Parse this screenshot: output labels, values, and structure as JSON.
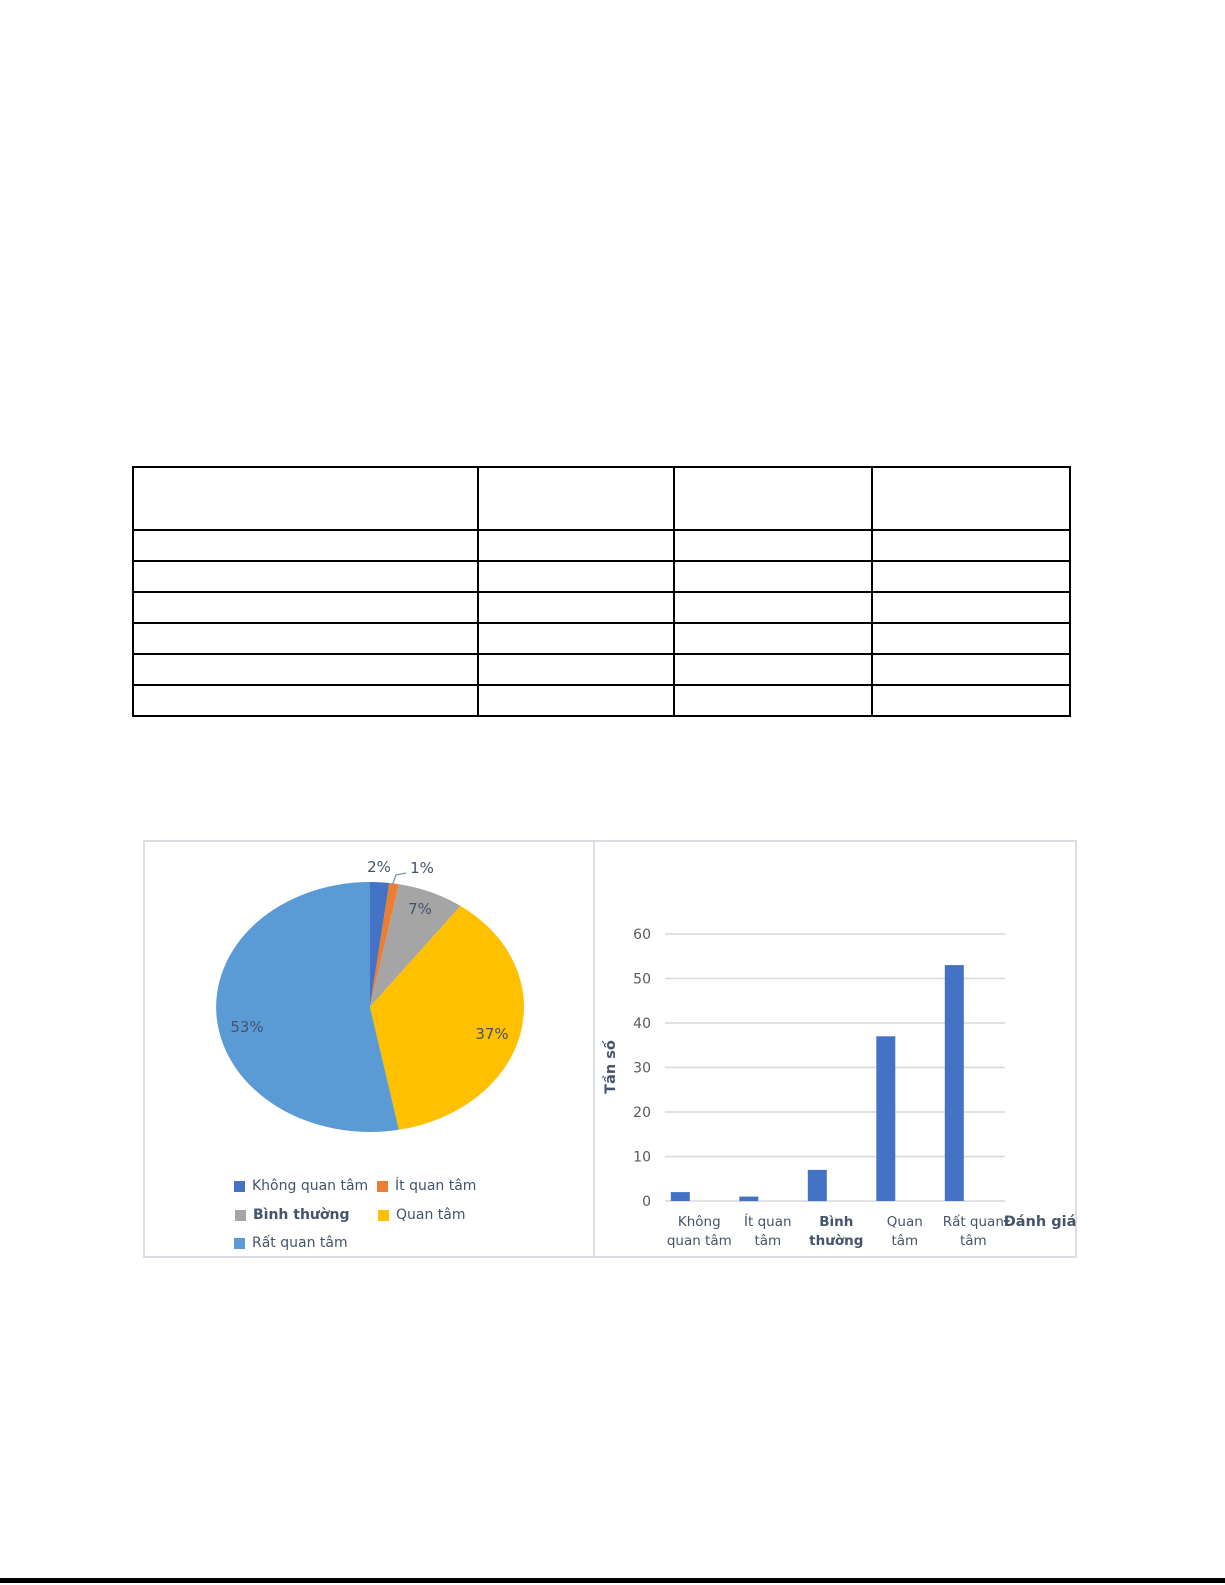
{
  "page": {
    "background": "#ffffff",
    "bottom_bar_color": "#000000"
  },
  "table": {
    "rows": [
      [
        "",
        "",
        "",
        ""
      ],
      [
        "",
        "",
        "",
        ""
      ],
      [
        "",
        "",
        "",
        ""
      ],
      [
        "",
        "",
        "",
        ""
      ],
      [
        "",
        "",
        "",
        ""
      ],
      [
        "",
        "",
        "",
        ""
      ],
      [
        "",
        "",
        "",
        ""
      ]
    ]
  },
  "chart_data": [
    {
      "type": "pie",
      "title": "",
      "labels": [
        "Không quan tâm",
        "Ít quan tâm",
        "Bình thường",
        "Quan tâm",
        "Rất quan tâm"
      ],
      "values_percent": [
        2,
        1,
        7,
        37,
        53
      ],
      "data_labels": [
        "2%",
        "1%",
        "7%",
        "37%",
        "53%"
      ],
      "colors": [
        "#4472C4",
        "#ED7D31",
        "#A5A5A5",
        "#FFC000",
        "#5B9BD5"
      ],
      "legend_position": "bottom",
      "legend_rows": [
        [
          "Không quan tâm",
          "Ít quan tâm"
        ],
        [
          "Bình thường",
          "Quan tâm"
        ],
        [
          "Rất quan tâm"
        ]
      ]
    },
    {
      "type": "bar",
      "title": "",
      "categories": [
        "Không quan tâm",
        "Ít quan tâm",
        "Bình thường",
        "Quan tâm",
        "Rất quan tâm"
      ],
      "x_tick_lines": [
        [
          "Không",
          "quan tâm"
        ],
        [
          "Ít quan",
          "tâm"
        ],
        [
          "Bình",
          "thường"
        ],
        [
          "Quan",
          "tâm"
        ],
        [
          "Rất quan",
          "tâm"
        ]
      ],
      "values": [
        2,
        1,
        7,
        37,
        53
      ],
      "ylabel": "Tần số",
      "xlabel": "Đánh giá",
      "ylim": [
        0,
        60
      ],
      "yticks": [
        0,
        10,
        20,
        30,
        40,
        50,
        60
      ],
      "bar_color": "#4472C4",
      "grid": true,
      "grid_color": "#d9d9d9",
      "tick_color": "#595959",
      "text_color": "#44546a"
    }
  ]
}
